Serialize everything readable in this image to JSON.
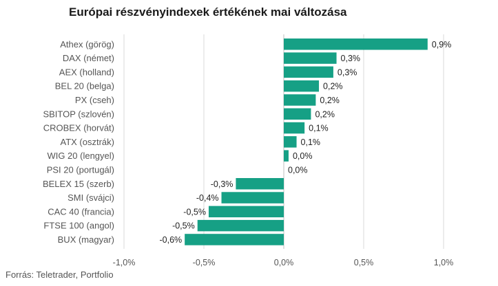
{
  "chart_data": {
    "type": "bar",
    "orientation": "horizontal",
    "title": "Európai részvényindexek értékének mai változása",
    "source": "Forrás: Teletrader, Portfolio",
    "categories": [
      "Athex (görög)",
      "DAX (német)",
      "AEX (holland)",
      "BEL 20 (belga)",
      "PX (cseh)",
      "SBITOP (szlovén)",
      "CROBEX (horvát)",
      "ATX (osztrák)",
      "WIG 20 (lengyel)",
      "PSI 20 (portugál)",
      "BELEX 15 (szerb)",
      "SMI (svájci)",
      "CAC 40 (francia)",
      "FTSE 100 (angol)",
      "BUX (magyar)"
    ],
    "values": [
      0.9,
      0.33,
      0.31,
      0.22,
      0.2,
      0.17,
      0.13,
      0.08,
      0.03,
      0.0,
      -0.3,
      -0.39,
      -0.47,
      -0.54,
      -0.62
    ],
    "value_labels": [
      "0,9%",
      "0,3%",
      "0,3%",
      "0,2%",
      "0,2%",
      "0,2%",
      "0,1%",
      "0,1%",
      "0,0%",
      "0,0%",
      "-0,3%",
      "-0,4%",
      "-0,5%",
      "-0,5%",
      "-0,6%"
    ],
    "xlim": [
      -1.0,
      1.0
    ],
    "xticks": [
      -1.0,
      -0.5,
      0.0,
      0.5,
      1.0
    ],
    "xtick_labels": [
      "-1,0%",
      "-0,5%",
      "0,0%",
      "0,5%",
      "1,0%"
    ],
    "bar_color": "#16a085",
    "grid": true
  }
}
